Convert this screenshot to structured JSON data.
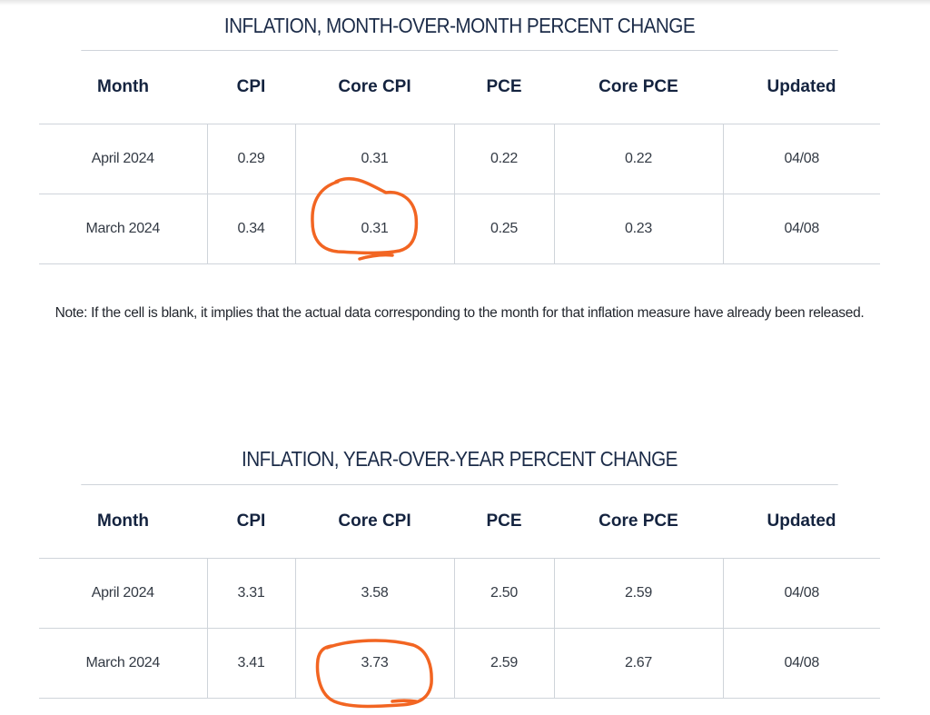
{
  "mom": {
    "title": "INFLATION, MONTH-OVER-MONTH PERCENT CHANGE",
    "headers": [
      "Month",
      "CPI",
      "Core CPI",
      "PCE",
      "Core PCE",
      "Updated"
    ],
    "rows": [
      [
        "April 2024",
        "0.29",
        "0.31",
        "0.22",
        "0.22",
        "04/08"
      ],
      [
        "March 2024",
        "0.34",
        "0.31",
        "0.25",
        "0.23",
        "04/08"
      ]
    ]
  },
  "note": "Note: If the cell is blank, it implies that the actual data corresponding to the month for that inflation measure have already been released.",
  "yoy": {
    "title": "INFLATION, YEAR-OVER-YEAR PERCENT CHANGE",
    "headers": [
      "Month",
      "CPI",
      "Core CPI",
      "PCE",
      "Core PCE",
      "Updated"
    ],
    "rows": [
      [
        "April 2024",
        "3.31",
        "3.58",
        "2.50",
        "2.59",
        "04/08"
      ],
      [
        "March 2024",
        "3.41",
        "3.73",
        "2.59",
        "2.67",
        "04/08"
      ]
    ]
  },
  "colors": {
    "annotation": "#f26522",
    "heading": "#14233f",
    "rule": "#cfd4da"
  }
}
